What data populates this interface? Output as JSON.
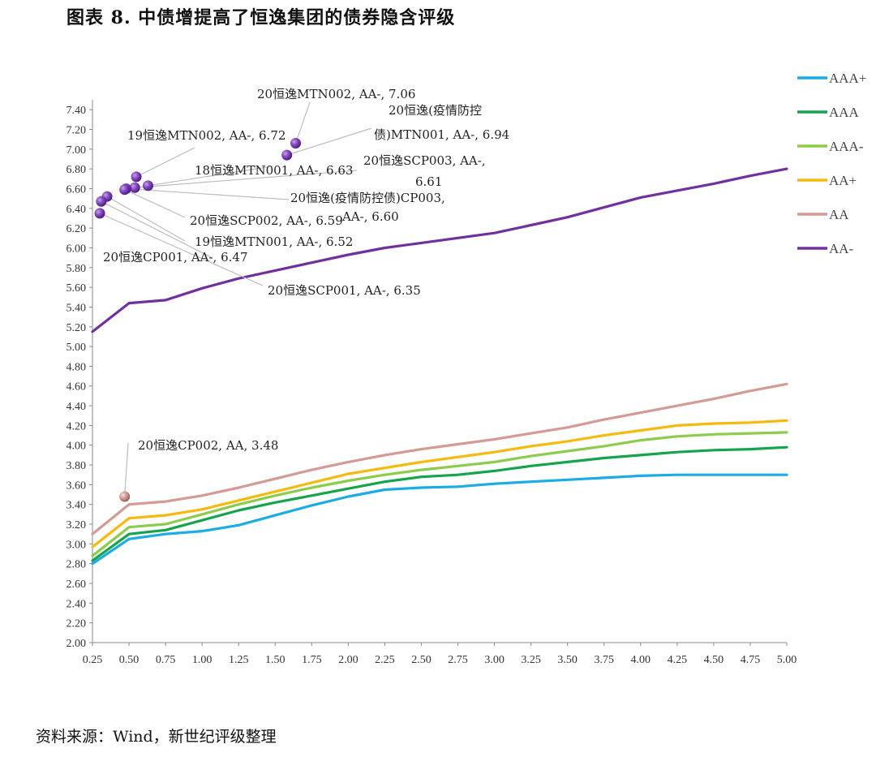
{
  "figure": {
    "title": "图表 8. 中债增提高了恒逸集团的债券隐含评级",
    "source": "资料来源：Wind，新世纪评级整理"
  },
  "chart_data": {
    "type": "line",
    "title": "图表 8. 中债增提高了恒逸集团的债券隐含评级",
    "xlabel": "",
    "ylabel": "",
    "x": [
      0.25,
      0.5,
      0.75,
      1.0,
      1.25,
      1.5,
      1.75,
      2.0,
      2.25,
      2.5,
      2.75,
      3.0,
      3.25,
      3.5,
      3.75,
      4.0,
      4.25,
      4.5,
      4.75,
      5.0
    ],
    "x_tick_labels": [
      "0.25",
      "0.50",
      "0.75",
      "1.00",
      "1.25",
      "1.50",
      "1.75",
      "2.00",
      "2.25",
      "2.50",
      "2.75",
      "3.00",
      "3.25",
      "3.50",
      "3.75",
      "4.00",
      "4.25",
      "4.50",
      "4.75",
      "5.00"
    ],
    "xlim": [
      0.25,
      5.0
    ],
    "ylim": [
      2.0,
      7.5
    ],
    "y_ticks": [
      "2.00",
      "2.20",
      "2.40",
      "2.60",
      "2.80",
      "3.00",
      "3.20",
      "3.40",
      "3.60",
      "3.80",
      "4.00",
      "4.20",
      "4.40",
      "4.60",
      "4.80",
      "5.00",
      "5.20",
      "5.40",
      "5.60",
      "5.80",
      "6.00",
      "6.20",
      "6.40",
      "6.60",
      "6.80",
      "7.00",
      "7.20",
      "7.40"
    ],
    "grid": false,
    "legend_position": "right",
    "series": [
      {
        "name": "AAA+",
        "color": "#1AACE4",
        "values": [
          2.8,
          3.05,
          3.1,
          3.13,
          3.19,
          3.29,
          3.39,
          3.48,
          3.55,
          3.57,
          3.58,
          3.61,
          3.63,
          3.65,
          3.67,
          3.69,
          3.7,
          3.7,
          3.7,
          3.7
        ]
      },
      {
        "name": "AAA",
        "color": "#14A54C",
        "values": [
          2.83,
          3.1,
          3.14,
          3.24,
          3.34,
          3.42,
          3.49,
          3.56,
          3.63,
          3.68,
          3.7,
          3.74,
          3.79,
          3.83,
          3.87,
          3.9,
          3.93,
          3.95,
          3.96,
          3.98
        ]
      },
      {
        "name": "AAA-",
        "color": "#8CCC4B",
        "values": [
          2.88,
          3.17,
          3.2,
          3.3,
          3.4,
          3.49,
          3.57,
          3.64,
          3.7,
          3.75,
          3.79,
          3.83,
          3.89,
          3.94,
          3.99,
          4.05,
          4.09,
          4.11,
          4.12,
          4.13
        ]
      },
      {
        "name": "AA+",
        "color": "#F7B90C",
        "values": [
          2.97,
          3.26,
          3.29,
          3.35,
          3.44,
          3.53,
          3.62,
          3.71,
          3.77,
          3.83,
          3.88,
          3.93,
          3.99,
          4.04,
          4.1,
          4.15,
          4.2,
          4.22,
          4.23,
          4.25
        ]
      },
      {
        "name": "AA",
        "color": "#D69A95",
        "values": [
          3.1,
          3.4,
          3.43,
          3.49,
          3.57,
          3.66,
          3.75,
          3.83,
          3.9,
          3.96,
          4.01,
          4.06,
          4.12,
          4.18,
          4.26,
          4.33,
          4.4,
          4.47,
          4.55,
          4.62
        ]
      },
      {
        "name": "AA-",
        "color": "#7030A0",
        "values": [
          5.15,
          5.44,
          5.47,
          5.59,
          5.69,
          5.77,
          5.85,
          5.93,
          6.0,
          6.05,
          6.1,
          6.15,
          6.23,
          6.31,
          6.41,
          6.51,
          6.58,
          6.65,
          6.73,
          6.8
        ]
      }
    ],
    "annotations": [
      {
        "text": "20恒逸MTN002, AA-, 7.06",
        "x": 1.64,
        "y": 7.06,
        "rating": "AA-"
      },
      {
        "text": "20恒逸(疫情防控债)MTN001, AA-, 6.94",
        "x": 1.58,
        "y": 6.94,
        "rating": "AA-"
      },
      {
        "text": "19恒逸MTN002, AA-, 6.72",
        "x": 0.55,
        "y": 6.72,
        "rating": "AA-"
      },
      {
        "text": "18恒逸MTN001, AA-, 6.63",
        "x": 0.63,
        "y": 6.63,
        "rating": "AA-"
      },
      {
        "text": "20恒逸SCP003, AA-, 6.61",
        "x": 0.54,
        "y": 6.61,
        "rating": "AA-"
      },
      {
        "text": "20恒逸(疫情防控债)CP003, AA-, 6.60",
        "x": 0.48,
        "y": 6.6,
        "rating": "AA-"
      },
      {
        "text": "20恒逸SCP002, AA-, 6.59",
        "x": 0.47,
        "y": 6.59,
        "rating": "AA-"
      },
      {
        "text": "19恒逸MTN001, AA-, 6.52",
        "x": 0.35,
        "y": 6.52,
        "rating": "AA-"
      },
      {
        "text": "20恒逸CP001, AA-, 6.47",
        "x": 0.31,
        "y": 6.47,
        "rating": "AA-"
      },
      {
        "text": "20恒逸SCP001, AA-, 6.35",
        "x": 0.3,
        "y": 6.35,
        "rating": "AA-"
      },
      {
        "text": "20恒逸CP002, AA, 3.48",
        "x": 0.47,
        "y": 3.48,
        "rating": "AA"
      }
    ],
    "annotation_lines": [
      "20恒逸MTN002, AA-, 7.06",
      "20恒逸(疫情防控",
      "债)MTN001, AA-, 6.94",
      "19恒逸MTN002, AA-, 6.72",
      "18恒逸MTN001, AA-, 6.63",
      "20恒逸SCP003, AA-,",
      "6.61",
      "20恒逸(疫情防控债)CP003,",
      "AA-, 6.60",
      "20恒逸SCP002, AA-, 6.59",
      "19恒逸MTN001, AA-, 6.52",
      "20恒逸CP001, AA-, 6.47",
      "20恒逸SCP001, AA-, 6.35",
      "20恒逸CP002, AA, 3.48"
    ]
  }
}
